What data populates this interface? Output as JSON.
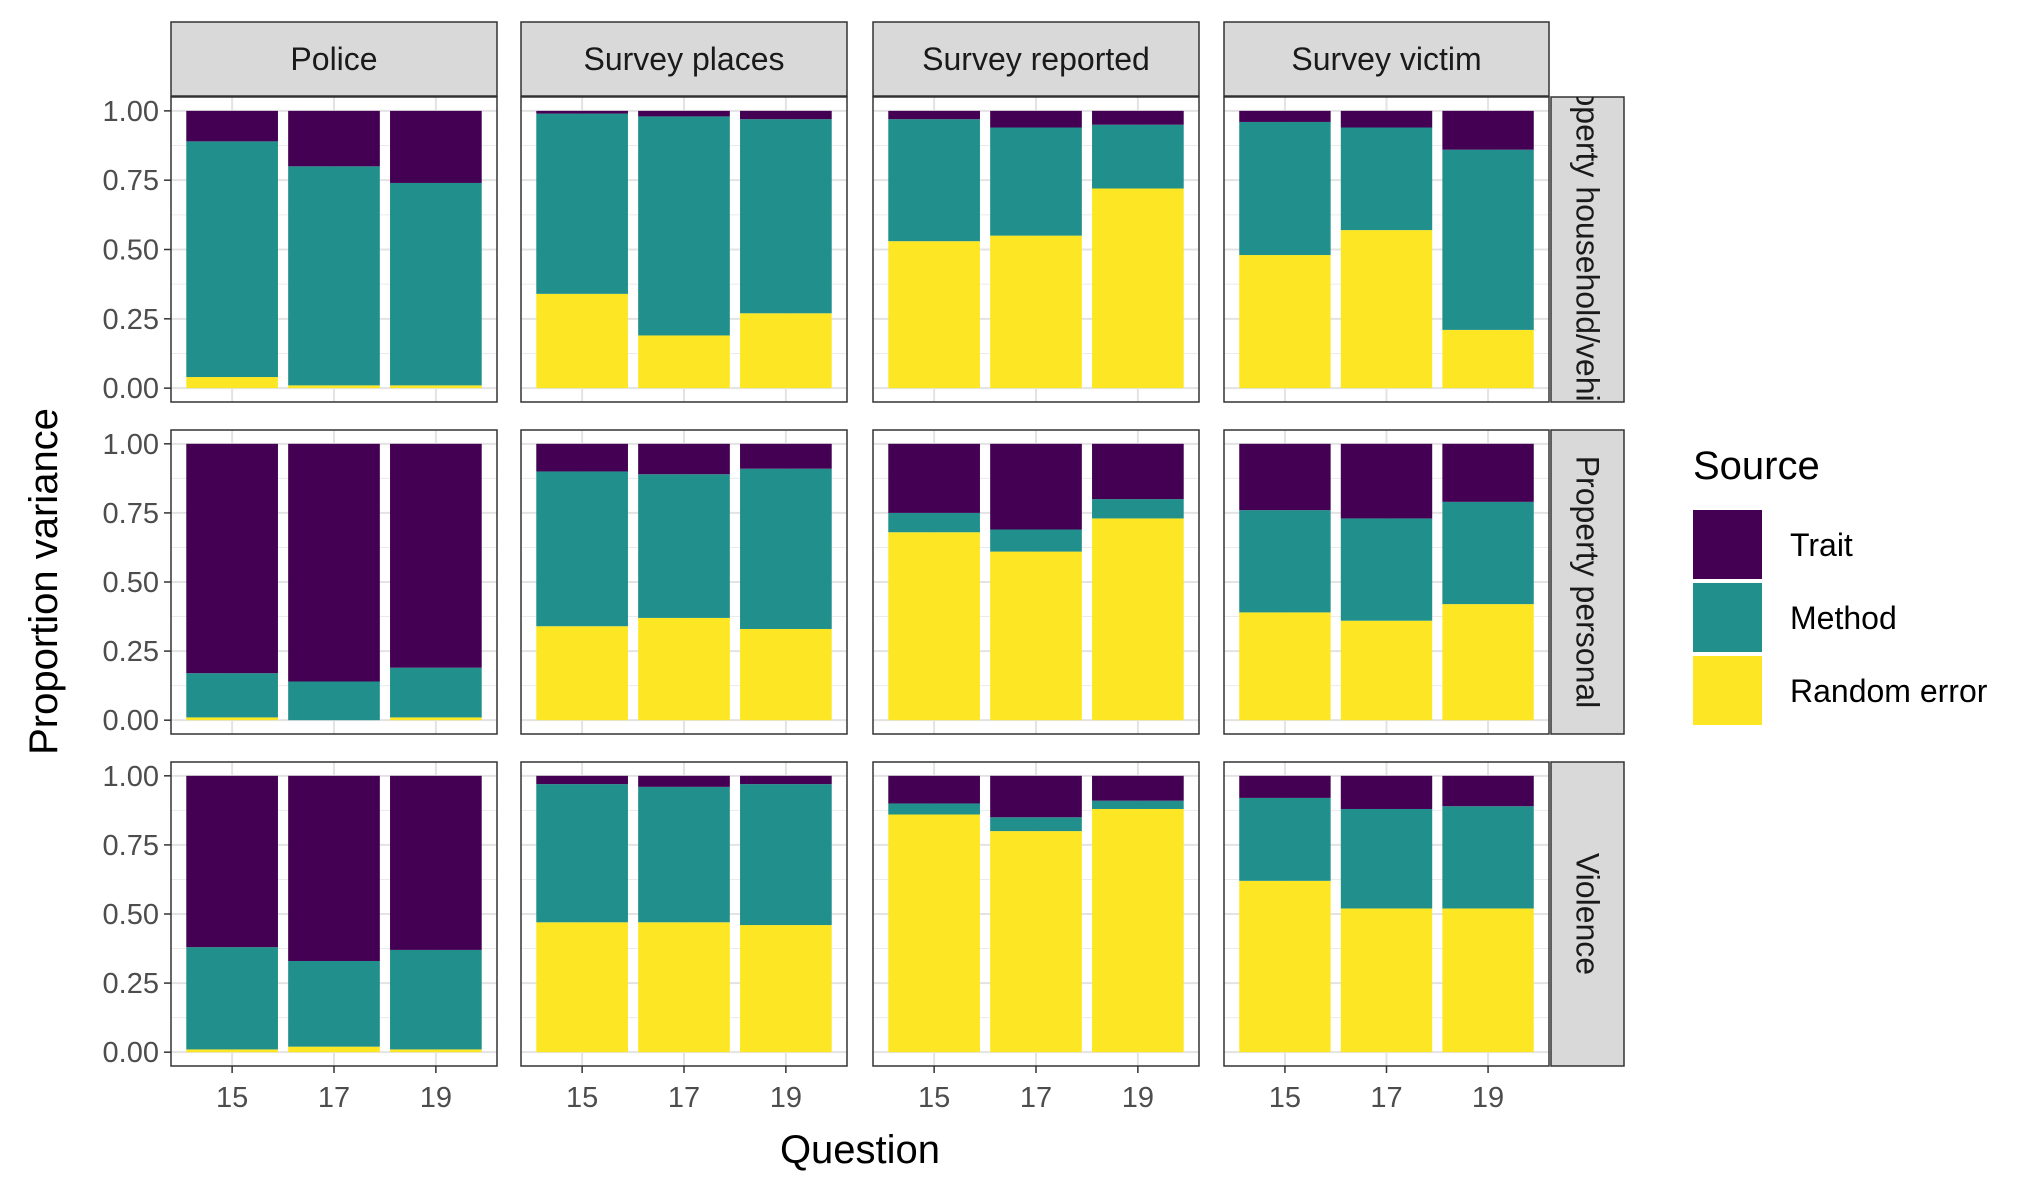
{
  "chart_data": {
    "type": "bar",
    "stacked": true,
    "normalized": true,
    "x_categories": [
      "15",
      "17",
      "19"
    ],
    "xlabel": "Question",
    "ylabel": "Proportion variance",
    "ylim": [
      0,
      1
    ],
    "y_ticks": [
      "0.00",
      "0.25",
      "0.50",
      "0.75",
      "1.00"
    ],
    "col_facets": [
      "Police",
      "Survey places",
      "Survey reported",
      "Survey victim"
    ],
    "row_facets": [
      "Property household/vehicle",
      "Property personal",
      "Violence"
    ],
    "legend": {
      "title": "Source",
      "position": "right",
      "entries": [
        {
          "name": "Trait",
          "color": "#440154"
        },
        {
          "name": "Method",
          "color": "#21908C"
        },
        {
          "name": "Random error",
          "color": "#FDE725"
        }
      ]
    },
    "grid": true,
    "stack_order_bottom_to_top": [
      "Random error",
      "Method",
      "Trait"
    ],
    "panels": [
      {
        "row": "Property household/vehicle",
        "col": "Police",
        "random_error": [
          0.04,
          0.01,
          0.01
        ],
        "method": [
          0.85,
          0.79,
          0.73
        ],
        "trait": [
          0.11,
          0.2,
          0.26
        ]
      },
      {
        "row": "Property household/vehicle",
        "col": "Survey places",
        "random_error": [
          0.34,
          0.19,
          0.27
        ],
        "method": [
          0.65,
          0.79,
          0.7
        ],
        "trait": [
          0.01,
          0.02,
          0.03
        ]
      },
      {
        "row": "Property household/vehicle",
        "col": "Survey reported",
        "random_error": [
          0.53,
          0.55,
          0.72
        ],
        "method": [
          0.44,
          0.39,
          0.23
        ],
        "trait": [
          0.03,
          0.06,
          0.05
        ]
      },
      {
        "row": "Property household/vehicle",
        "col": "Survey victim",
        "random_error": [
          0.48,
          0.57,
          0.21
        ],
        "method": [
          0.48,
          0.37,
          0.65
        ],
        "trait": [
          0.04,
          0.06,
          0.14
        ]
      },
      {
        "row": "Property personal",
        "col": "Police",
        "random_error": [
          0.01,
          0.0,
          0.01
        ],
        "method": [
          0.16,
          0.14,
          0.18
        ],
        "trait": [
          0.83,
          0.86,
          0.81
        ]
      },
      {
        "row": "Property personal",
        "col": "Survey places",
        "random_error": [
          0.34,
          0.37,
          0.33
        ],
        "method": [
          0.56,
          0.52,
          0.58
        ],
        "trait": [
          0.1,
          0.11,
          0.09
        ]
      },
      {
        "row": "Property personal",
        "col": "Survey reported",
        "random_error": [
          0.68,
          0.61,
          0.73
        ],
        "method": [
          0.07,
          0.08,
          0.07
        ],
        "trait": [
          0.25,
          0.31,
          0.2
        ]
      },
      {
        "row": "Property personal",
        "col": "Survey victim",
        "random_error": [
          0.39,
          0.36,
          0.42
        ],
        "method": [
          0.37,
          0.37,
          0.37
        ],
        "trait": [
          0.24,
          0.27,
          0.21
        ]
      },
      {
        "row": "Violence",
        "col": "Police",
        "random_error": [
          0.01,
          0.02,
          0.01
        ],
        "method": [
          0.37,
          0.31,
          0.36
        ],
        "trait": [
          0.62,
          0.67,
          0.63
        ]
      },
      {
        "row": "Violence",
        "col": "Survey places",
        "random_error": [
          0.47,
          0.47,
          0.46
        ],
        "method": [
          0.5,
          0.49,
          0.51
        ],
        "trait": [
          0.03,
          0.04,
          0.03
        ]
      },
      {
        "row": "Violence",
        "col": "Survey reported",
        "random_error": [
          0.86,
          0.8,
          0.88
        ],
        "method": [
          0.04,
          0.05,
          0.03
        ],
        "trait": [
          0.1,
          0.15,
          0.09
        ]
      },
      {
        "row": "Violence",
        "col": "Survey victim",
        "random_error": [
          0.62,
          0.52,
          0.52
        ],
        "method": [
          0.3,
          0.36,
          0.37
        ],
        "trait": [
          0.08,
          0.12,
          0.11
        ]
      }
    ]
  }
}
